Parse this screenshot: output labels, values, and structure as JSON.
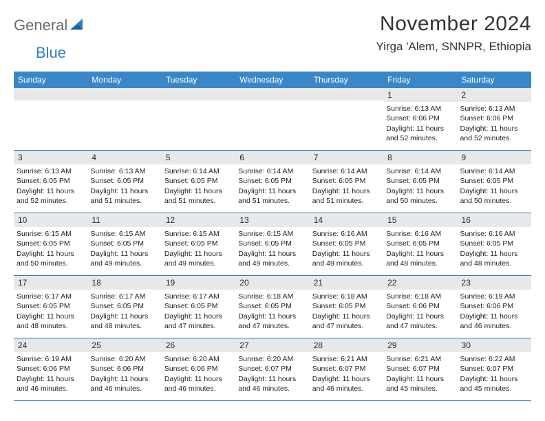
{
  "brand": {
    "part1": "General",
    "part2": "Blue"
  },
  "title": "November 2024",
  "location": "Yirga 'Alem, SNNPR, Ethiopia",
  "colors": {
    "header_bg": "#3a87c8",
    "header_text": "#ffffff",
    "daynum_bg": "#e7e8ea",
    "text": "#222222",
    "rule": "#2f7fc0",
    "logo_gray": "#6b6b6b",
    "logo_blue": "#2f7fc0"
  },
  "dow": [
    "Sunday",
    "Monday",
    "Tuesday",
    "Wednesday",
    "Thursday",
    "Friday",
    "Saturday"
  ],
  "weeks": [
    [
      {
        "n": "",
        "sunrise": "",
        "sunset": "",
        "daylight": ""
      },
      {
        "n": "",
        "sunrise": "",
        "sunset": "",
        "daylight": ""
      },
      {
        "n": "",
        "sunrise": "",
        "sunset": "",
        "daylight": ""
      },
      {
        "n": "",
        "sunrise": "",
        "sunset": "",
        "daylight": ""
      },
      {
        "n": "",
        "sunrise": "",
        "sunset": "",
        "daylight": ""
      },
      {
        "n": "1",
        "sunrise": "Sunrise: 6:13 AM",
        "sunset": "Sunset: 6:06 PM",
        "daylight": "Daylight: 11 hours and 52 minutes."
      },
      {
        "n": "2",
        "sunrise": "Sunrise: 6:13 AM",
        "sunset": "Sunset: 6:06 PM",
        "daylight": "Daylight: 11 hours and 52 minutes."
      }
    ],
    [
      {
        "n": "3",
        "sunrise": "Sunrise: 6:13 AM",
        "sunset": "Sunset: 6:05 PM",
        "daylight": "Daylight: 11 hours and 52 minutes."
      },
      {
        "n": "4",
        "sunrise": "Sunrise: 6:13 AM",
        "sunset": "Sunset: 6:05 PM",
        "daylight": "Daylight: 11 hours and 51 minutes."
      },
      {
        "n": "5",
        "sunrise": "Sunrise: 6:14 AM",
        "sunset": "Sunset: 6:05 PM",
        "daylight": "Daylight: 11 hours and 51 minutes."
      },
      {
        "n": "6",
        "sunrise": "Sunrise: 6:14 AM",
        "sunset": "Sunset: 6:05 PM",
        "daylight": "Daylight: 11 hours and 51 minutes."
      },
      {
        "n": "7",
        "sunrise": "Sunrise: 6:14 AM",
        "sunset": "Sunset: 6:05 PM",
        "daylight": "Daylight: 11 hours and 51 minutes."
      },
      {
        "n": "8",
        "sunrise": "Sunrise: 6:14 AM",
        "sunset": "Sunset: 6:05 PM",
        "daylight": "Daylight: 11 hours and 50 minutes."
      },
      {
        "n": "9",
        "sunrise": "Sunrise: 6:14 AM",
        "sunset": "Sunset: 6:05 PM",
        "daylight": "Daylight: 11 hours and 50 minutes."
      }
    ],
    [
      {
        "n": "10",
        "sunrise": "Sunrise: 6:15 AM",
        "sunset": "Sunset: 6:05 PM",
        "daylight": "Daylight: 11 hours and 50 minutes."
      },
      {
        "n": "11",
        "sunrise": "Sunrise: 6:15 AM",
        "sunset": "Sunset: 6:05 PM",
        "daylight": "Daylight: 11 hours and 49 minutes."
      },
      {
        "n": "12",
        "sunrise": "Sunrise: 6:15 AM",
        "sunset": "Sunset: 6:05 PM",
        "daylight": "Daylight: 11 hours and 49 minutes."
      },
      {
        "n": "13",
        "sunrise": "Sunrise: 6:15 AM",
        "sunset": "Sunset: 6:05 PM",
        "daylight": "Daylight: 11 hours and 49 minutes."
      },
      {
        "n": "14",
        "sunrise": "Sunrise: 6:16 AM",
        "sunset": "Sunset: 6:05 PM",
        "daylight": "Daylight: 11 hours and 49 minutes."
      },
      {
        "n": "15",
        "sunrise": "Sunrise: 6:16 AM",
        "sunset": "Sunset: 6:05 PM",
        "daylight": "Daylight: 11 hours and 48 minutes."
      },
      {
        "n": "16",
        "sunrise": "Sunrise: 6:16 AM",
        "sunset": "Sunset: 6:05 PM",
        "daylight": "Daylight: 11 hours and 48 minutes."
      }
    ],
    [
      {
        "n": "17",
        "sunrise": "Sunrise: 6:17 AM",
        "sunset": "Sunset: 6:05 PM",
        "daylight": "Daylight: 11 hours and 48 minutes."
      },
      {
        "n": "18",
        "sunrise": "Sunrise: 6:17 AM",
        "sunset": "Sunset: 6:05 PM",
        "daylight": "Daylight: 11 hours and 48 minutes."
      },
      {
        "n": "19",
        "sunrise": "Sunrise: 6:17 AM",
        "sunset": "Sunset: 6:05 PM",
        "daylight": "Daylight: 11 hours and 47 minutes."
      },
      {
        "n": "20",
        "sunrise": "Sunrise: 6:18 AM",
        "sunset": "Sunset: 6:05 PM",
        "daylight": "Daylight: 11 hours and 47 minutes."
      },
      {
        "n": "21",
        "sunrise": "Sunrise: 6:18 AM",
        "sunset": "Sunset: 6:05 PM",
        "daylight": "Daylight: 11 hours and 47 minutes."
      },
      {
        "n": "22",
        "sunrise": "Sunrise: 6:18 AM",
        "sunset": "Sunset: 6:06 PM",
        "daylight": "Daylight: 11 hours and 47 minutes."
      },
      {
        "n": "23",
        "sunrise": "Sunrise: 6:19 AM",
        "sunset": "Sunset: 6:06 PM",
        "daylight": "Daylight: 11 hours and 46 minutes."
      }
    ],
    [
      {
        "n": "24",
        "sunrise": "Sunrise: 6:19 AM",
        "sunset": "Sunset: 6:06 PM",
        "daylight": "Daylight: 11 hours and 46 minutes."
      },
      {
        "n": "25",
        "sunrise": "Sunrise: 6:20 AM",
        "sunset": "Sunset: 6:06 PM",
        "daylight": "Daylight: 11 hours and 46 minutes."
      },
      {
        "n": "26",
        "sunrise": "Sunrise: 6:20 AM",
        "sunset": "Sunset: 6:06 PM",
        "daylight": "Daylight: 11 hours and 46 minutes."
      },
      {
        "n": "27",
        "sunrise": "Sunrise: 6:20 AM",
        "sunset": "Sunset: 6:07 PM",
        "daylight": "Daylight: 11 hours and 46 minutes."
      },
      {
        "n": "28",
        "sunrise": "Sunrise: 6:21 AM",
        "sunset": "Sunset: 6:07 PM",
        "daylight": "Daylight: 11 hours and 46 minutes."
      },
      {
        "n": "29",
        "sunrise": "Sunrise: 6:21 AM",
        "sunset": "Sunset: 6:07 PM",
        "daylight": "Daylight: 11 hours and 45 minutes."
      },
      {
        "n": "30",
        "sunrise": "Sunrise: 6:22 AM",
        "sunset": "Sunset: 6:07 PM",
        "daylight": "Daylight: 11 hours and 45 minutes."
      }
    ]
  ]
}
